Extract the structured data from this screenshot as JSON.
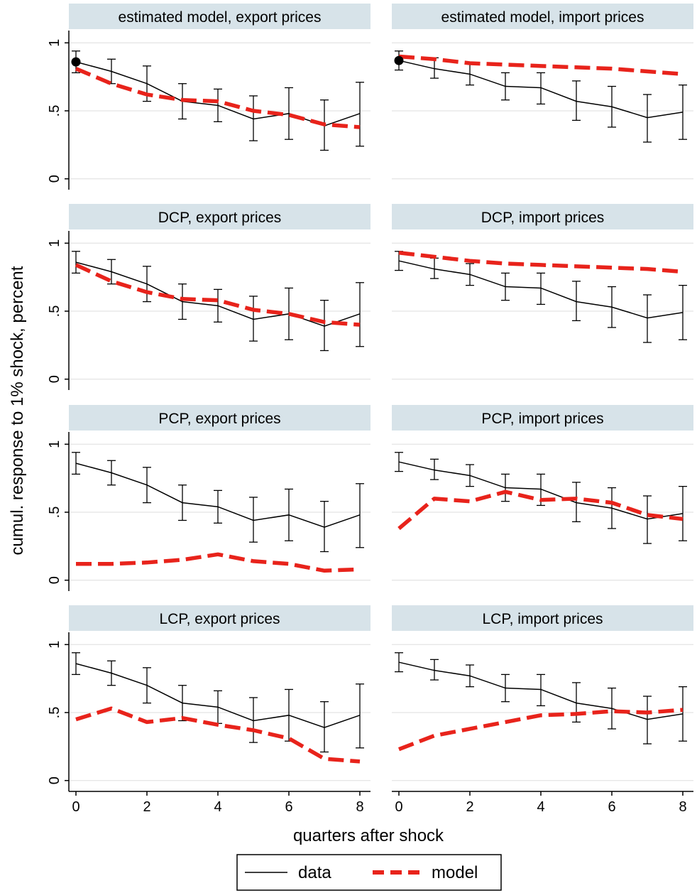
{
  "figure": {
    "ylabel": "cumul. response to 1% shock, percent",
    "xlabel": "quarters after shock",
    "legend": {
      "data_label": "data",
      "model_label": "model"
    }
  },
  "colors": {
    "model": "#e8231b",
    "data": "#000000",
    "header_bg": "#d7e3e9",
    "grid": "#dedede"
  },
  "chart_data": [
    {
      "type": "line",
      "title": "estimated model, export prices",
      "x": [
        0,
        1,
        2,
        3,
        4,
        5,
        6,
        7,
        8
      ],
      "xlim": [
        -0.2,
        8.3
      ],
      "ylim": [
        -0.08,
        1.08
      ],
      "yticks": [
        0,
        0.5,
        1
      ],
      "ytick_labels": [
        "0",
        ".5",
        "1"
      ],
      "xticks": [
        0,
        2,
        4,
        6,
        8
      ],
      "series": [
        {
          "name": "data",
          "values": [
            0.86,
            0.79,
            0.7,
            0.57,
            0.54,
            0.44,
            0.48,
            0.39,
            0.48
          ],
          "ci_low": [
            0.78,
            0.7,
            0.57,
            0.44,
            0.42,
            0.28,
            0.29,
            0.21,
            0.24
          ],
          "ci_high": [
            0.94,
            0.88,
            0.83,
            0.7,
            0.66,
            0.61,
            0.67,
            0.58,
            0.71
          ]
        },
        {
          "name": "model",
          "values": [
            0.81,
            0.7,
            0.62,
            0.58,
            0.57,
            0.5,
            0.47,
            0.4,
            0.38
          ]
        }
      ],
      "marker": {
        "x": 0,
        "y": 0.86
      }
    },
    {
      "type": "line",
      "title": "estimated model, import prices",
      "x": [
        0,
        1,
        2,
        3,
        4,
        5,
        6,
        7,
        8
      ],
      "xlim": [
        -0.2,
        8.3
      ],
      "ylim": [
        -0.08,
        1.08
      ],
      "yticks": [
        0,
        0.5,
        1
      ],
      "ytick_labels": [
        "0",
        ".5",
        "1"
      ],
      "xticks": [
        0,
        2,
        4,
        6,
        8
      ],
      "series": [
        {
          "name": "data",
          "values": [
            0.87,
            0.81,
            0.77,
            0.68,
            0.67,
            0.57,
            0.53,
            0.45,
            0.49
          ],
          "ci_low": [
            0.8,
            0.74,
            0.69,
            0.58,
            0.55,
            0.43,
            0.38,
            0.27,
            0.29
          ],
          "ci_high": [
            0.94,
            0.89,
            0.85,
            0.78,
            0.78,
            0.72,
            0.68,
            0.62,
            0.69
          ]
        },
        {
          "name": "model",
          "values": [
            0.9,
            0.88,
            0.85,
            0.84,
            0.83,
            0.82,
            0.81,
            0.79,
            0.77
          ]
        }
      ],
      "marker": {
        "x": 0,
        "y": 0.87
      }
    },
    {
      "type": "line",
      "title": "DCP, export prices",
      "x": [
        0,
        1,
        2,
        3,
        4,
        5,
        6,
        7,
        8
      ],
      "xlim": [
        -0.2,
        8.3
      ],
      "ylim": [
        -0.08,
        1.08
      ],
      "yticks": [
        0,
        0.5,
        1
      ],
      "ytick_labels": [
        "0",
        ".5",
        "1"
      ],
      "xticks": [
        0,
        2,
        4,
        6,
        8
      ],
      "series": [
        {
          "name": "data",
          "values": [
            0.86,
            0.79,
            0.7,
            0.57,
            0.54,
            0.44,
            0.48,
            0.39,
            0.48
          ],
          "ci_low": [
            0.78,
            0.7,
            0.57,
            0.44,
            0.42,
            0.28,
            0.29,
            0.21,
            0.24
          ],
          "ci_high": [
            0.94,
            0.88,
            0.83,
            0.7,
            0.66,
            0.61,
            0.67,
            0.58,
            0.71
          ]
        },
        {
          "name": "model",
          "values": [
            0.84,
            0.72,
            0.64,
            0.59,
            0.58,
            0.51,
            0.48,
            0.42,
            0.4
          ]
        }
      ]
    },
    {
      "type": "line",
      "title": "DCP, import prices",
      "x": [
        0,
        1,
        2,
        3,
        4,
        5,
        6,
        7,
        8
      ],
      "xlim": [
        -0.2,
        8.3
      ],
      "ylim": [
        -0.08,
        1.08
      ],
      "yticks": [
        0,
        0.5,
        1
      ],
      "ytick_labels": [
        "0",
        ".5",
        "1"
      ],
      "xticks": [
        0,
        2,
        4,
        6,
        8
      ],
      "series": [
        {
          "name": "data",
          "values": [
            0.87,
            0.81,
            0.77,
            0.68,
            0.67,
            0.57,
            0.53,
            0.45,
            0.49
          ],
          "ci_low": [
            0.8,
            0.74,
            0.69,
            0.58,
            0.55,
            0.43,
            0.38,
            0.27,
            0.29
          ],
          "ci_high": [
            0.94,
            0.89,
            0.85,
            0.78,
            0.78,
            0.72,
            0.68,
            0.62,
            0.69
          ]
        },
        {
          "name": "model",
          "values": [
            0.93,
            0.9,
            0.87,
            0.85,
            0.84,
            0.83,
            0.82,
            0.81,
            0.79
          ]
        }
      ]
    },
    {
      "type": "line",
      "title": "PCP, export prices",
      "x": [
        0,
        1,
        2,
        3,
        4,
        5,
        6,
        7,
        8
      ],
      "xlim": [
        -0.2,
        8.3
      ],
      "ylim": [
        -0.08,
        1.08
      ],
      "yticks": [
        0,
        0.5,
        1
      ],
      "ytick_labels": [
        "0",
        ".5",
        "1"
      ],
      "xticks": [
        0,
        2,
        4,
        6,
        8
      ],
      "series": [
        {
          "name": "data",
          "values": [
            0.86,
            0.79,
            0.7,
            0.57,
            0.54,
            0.44,
            0.48,
            0.39,
            0.48
          ],
          "ci_low": [
            0.78,
            0.7,
            0.57,
            0.44,
            0.42,
            0.28,
            0.29,
            0.21,
            0.24
          ],
          "ci_high": [
            0.94,
            0.88,
            0.83,
            0.7,
            0.66,
            0.61,
            0.67,
            0.58,
            0.71
          ]
        },
        {
          "name": "model",
          "values": [
            0.12,
            0.12,
            0.13,
            0.15,
            0.19,
            0.14,
            0.12,
            0.07,
            0.08
          ]
        }
      ]
    },
    {
      "type": "line",
      "title": "PCP, import prices",
      "x": [
        0,
        1,
        2,
        3,
        4,
        5,
        6,
        7,
        8
      ],
      "xlim": [
        -0.2,
        8.3
      ],
      "ylim": [
        -0.08,
        1.08
      ],
      "yticks": [
        0,
        0.5,
        1
      ],
      "ytick_labels": [
        "0",
        ".5",
        "1"
      ],
      "xticks": [
        0,
        2,
        4,
        6,
        8
      ],
      "series": [
        {
          "name": "data",
          "values": [
            0.87,
            0.81,
            0.77,
            0.68,
            0.67,
            0.57,
            0.53,
            0.45,
            0.49
          ],
          "ci_low": [
            0.8,
            0.74,
            0.69,
            0.58,
            0.55,
            0.43,
            0.38,
            0.27,
            0.29
          ],
          "ci_high": [
            0.94,
            0.89,
            0.85,
            0.78,
            0.78,
            0.72,
            0.68,
            0.62,
            0.69
          ]
        },
        {
          "name": "model",
          "values": [
            0.38,
            0.6,
            0.58,
            0.65,
            0.59,
            0.6,
            0.57,
            0.48,
            0.45
          ]
        }
      ]
    },
    {
      "type": "line",
      "title": "LCP, export prices",
      "x": [
        0,
        1,
        2,
        3,
        4,
        5,
        6,
        7,
        8
      ],
      "xlim": [
        -0.2,
        8.3
      ],
      "ylim": [
        -0.08,
        1.08
      ],
      "yticks": [
        0,
        0.5,
        1
      ],
      "ytick_labels": [
        "0",
        ".5",
        "1"
      ],
      "xticks": [
        0,
        2,
        4,
        6,
        8
      ],
      "series": [
        {
          "name": "data",
          "values": [
            0.86,
            0.79,
            0.7,
            0.57,
            0.54,
            0.44,
            0.48,
            0.39,
            0.48
          ],
          "ci_low": [
            0.78,
            0.7,
            0.57,
            0.44,
            0.42,
            0.28,
            0.29,
            0.21,
            0.24
          ],
          "ci_high": [
            0.94,
            0.88,
            0.83,
            0.7,
            0.66,
            0.61,
            0.67,
            0.58,
            0.71
          ]
        },
        {
          "name": "model",
          "values": [
            0.45,
            0.53,
            0.43,
            0.46,
            0.41,
            0.37,
            0.31,
            0.16,
            0.14
          ]
        }
      ],
      "show_xticks": true
    },
    {
      "type": "line",
      "title": "LCP, import prices",
      "x": [
        0,
        1,
        2,
        3,
        4,
        5,
        6,
        7,
        8
      ],
      "xlim": [
        -0.2,
        8.3
      ],
      "ylim": [
        -0.08,
        1.08
      ],
      "yticks": [
        0,
        0.5,
        1
      ],
      "ytick_labels": [
        "0",
        ".5",
        "1"
      ],
      "xticks": [
        0,
        2,
        4,
        6,
        8
      ],
      "series": [
        {
          "name": "data",
          "values": [
            0.87,
            0.81,
            0.77,
            0.68,
            0.67,
            0.57,
            0.53,
            0.45,
            0.49
          ],
          "ci_low": [
            0.8,
            0.74,
            0.69,
            0.58,
            0.55,
            0.43,
            0.38,
            0.27,
            0.29
          ],
          "ci_high": [
            0.94,
            0.89,
            0.85,
            0.78,
            0.78,
            0.72,
            0.68,
            0.62,
            0.69
          ]
        },
        {
          "name": "model",
          "values": [
            0.23,
            0.33,
            0.38,
            0.43,
            0.48,
            0.49,
            0.51,
            0.5,
            0.52
          ]
        }
      ],
      "show_xticks": true
    }
  ]
}
